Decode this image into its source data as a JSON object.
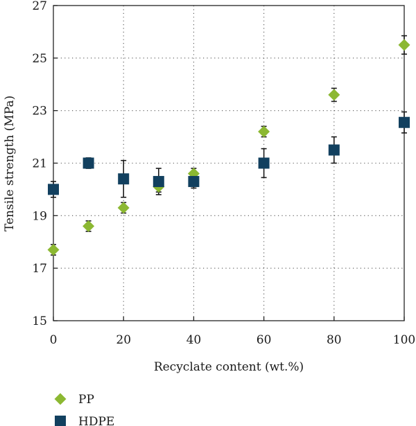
{
  "chart_data": {
    "type": "scatter",
    "title": "",
    "xlabel": "Recyclate content (wt.%)",
    "ylabel": "Tensile strength (MPa)",
    "xlim": [
      0,
      100
    ],
    "ylim": [
      15,
      27
    ],
    "xticks": [
      0,
      20,
      40,
      60,
      80,
      100
    ],
    "yticks": [
      15,
      17,
      19,
      21,
      23,
      25,
      27
    ],
    "grid": true,
    "legend": "bottom-left, below plot",
    "series": [
      {
        "name": "PP",
        "marker": "diamond",
        "color": "#8cb832",
        "x": [
          0,
          10,
          20,
          30,
          40,
          60,
          80,
          100
        ],
        "y": [
          17.7,
          18.6,
          19.3,
          20.1,
          20.6,
          22.2,
          23.6,
          25.5
        ],
        "err": [
          0.2,
          0.2,
          0.2,
          0.2,
          0.2,
          0.2,
          0.25,
          0.35
        ]
      },
      {
        "name": "HDPE",
        "marker": "square",
        "color": "#12405f",
        "x": [
          0,
          10,
          20,
          30,
          40,
          60,
          80,
          100
        ],
        "y": [
          20.0,
          21.0,
          20.4,
          20.3,
          20.3,
          21.0,
          21.5,
          22.55
        ],
        "err": [
          0.3,
          0.2,
          0.7,
          0.5,
          0.25,
          0.55,
          0.5,
          0.4
        ]
      }
    ]
  }
}
